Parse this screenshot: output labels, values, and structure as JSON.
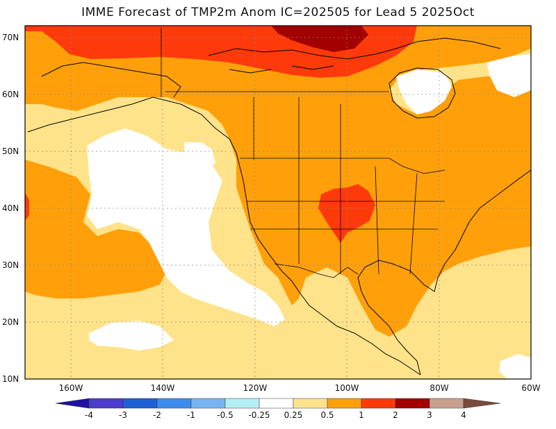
{
  "title": "IMME Forecast of TMP2m Anom IC=202505 for Lead 5 2025Oct",
  "map": {
    "lon_range": [
      -170,
      -60
    ],
    "lat_range": [
      10,
      72
    ],
    "lon_ticks": [
      {
        "value": -160,
        "label": "160W"
      },
      {
        "value": -140,
        "label": "140W"
      },
      {
        "value": -120,
        "label": "120W"
      },
      {
        "value": -100,
        "label": "100W"
      },
      {
        "value": -80,
        "label": "80W"
      },
      {
        "value": -60,
        "label": "60W"
      }
    ],
    "lat_ticks": [
      {
        "value": 70,
        "label": "70N"
      },
      {
        "value": 60,
        "label": "60N"
      },
      {
        "value": 50,
        "label": "50N"
      },
      {
        "value": 40,
        "label": "40N"
      },
      {
        "value": 30,
        "label": "30N"
      },
      {
        "value": 20,
        "label": "20N"
      },
      {
        "value": 10,
        "label": "10N"
      }
    ],
    "grid": true,
    "colors": {
      "white": "#ffffff",
      "light_yellow": "#ffe38a",
      "orange": "#ffa00a",
      "red_orange": "#ff3a0a",
      "dark_red": "#a30000",
      "land_lines": "#000000"
    }
  },
  "colorbar": {
    "labels": [
      "-4",
      "-3",
      "-2",
      "-1",
      "-0.5",
      "-0.25",
      "0.25",
      "0.5",
      "1",
      "2",
      "3",
      "4"
    ],
    "colors": [
      "#1f0fa3",
      "#4a3ccf",
      "#1c5fd6",
      "#3c8cf0",
      "#78b4f4",
      "#b4eef6",
      "#ffffff",
      "#ffe38a",
      "#ffa00a",
      "#ff3a0a",
      "#a30000",
      "#c8a08c",
      "#7a4a3a"
    ]
  }
}
